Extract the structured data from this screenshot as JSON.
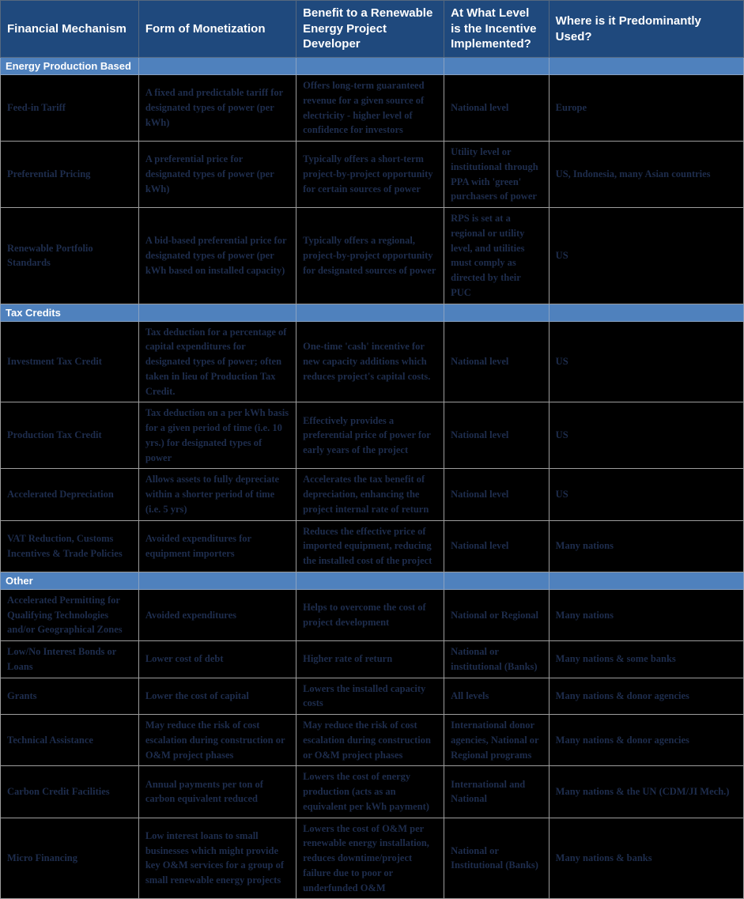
{
  "colors": {
    "header_bg": "#1F497D",
    "header_text": "#FFFFFF",
    "section_bg": "#4F81BD",
    "section_text": "#FFFFFF",
    "data_bg": "#000000",
    "data_text": "#1E2D4D"
  },
  "table": {
    "columns": [
      "Financial Mechanism",
      "Form of Monetization",
      "Benefit to a Renewable Energy Project Developer",
      "At What Level is the Incentive Implemented?",
      "Where is it Predominantly Used?"
    ],
    "sections": [
      {
        "label": "Energy Production Based",
        "rows": [
          {
            "cells": [
              "Feed-in Tariff",
              "A fixed and predictable tariff for designated types of power (per kWh)",
              "Offers long-term guaranteed revenue for a given source of electricity - higher level of confidence for investors",
              "National level",
              "Europe"
            ]
          },
          {
            "cells": [
              "Preferential Pricing",
              "A preferential price for designated types of power (per kWh)",
              "Typically offers a short-term project-by-project opportunity for certain sources of power",
              "Utility level or institutional through PPA with 'green' purchasers of power",
              "US, Indonesia, many Asian countries"
            ]
          },
          {
            "cells": [
              "Renewable Portfolio Standards",
              "A bid-based preferential price for designated types of power (per kWh based on installed capacity)",
              "Typically offers a regional, project-by-project opportunity for designated sources of power",
              "RPS is set at a regional or utility level, and utilities must comply as directed by their PUC",
              "US"
            ]
          }
        ]
      },
      {
        "label": "Tax Credits",
        "rows": [
          {
            "cells": [
              "Investment Tax Credit",
              "Tax deduction for a percentage of capital expenditures for designated types of power; often taken in lieu of Production Tax Credit.",
              "One-time 'cash' incentive for new capacity additions which reduces project's capital costs.",
              "National level",
              "US"
            ]
          },
          {
            "cells": [
              "Production Tax Credit",
              "Tax deduction on a per kWh basis for a given period of time (i.e. 10 yrs.) for designated types of power",
              "Effectively provides a preferential price of power for early years of the project",
              "National level",
              "US"
            ]
          },
          {
            "cells": [
              "Accelerated Depreciation",
              "Allows assets to fully depreciate within a shorter period of time (i.e. 5 yrs)",
              "Accelerates the tax benefit of depreciation, enhancing the project internal rate of return",
              "National level",
              "US"
            ]
          },
          {
            "cells": [
              "VAT Reduction, Customs Incentives & Trade Policies",
              "Avoided expenditures for equipment importers",
              "Reduces the effective price of imported equipment, reducing the installed cost of the project",
              "National level",
              "Many nations"
            ]
          }
        ]
      },
      {
        "label": "Other",
        "rows": [
          {
            "cells": [
              "Accelerated Permitting for Qualifying Technologies and/or Geographical Zones",
              "Avoided expenditures",
              "Helps to overcome the cost of project development",
              "National or Regional",
              "Many nations"
            ]
          },
          {
            "cells": [
              "Low/No Interest Bonds or Loans",
              "Lower cost of debt",
              "Higher rate of return",
              "National or institutional (Banks)",
              "Many nations & some banks"
            ]
          },
          {
            "cells": [
              "Grants",
              "Lower the cost of capital",
              "Lowers the installed capacity costs",
              "All levels",
              "Many nations & donor agencies"
            ]
          },
          {
            "cells": [
              "Technical Assistance",
              "May reduce the risk of cost escalation during construction or O&M project phases",
              "May reduce the risk of cost escalation during construction or O&M project phases",
              "International donor agencies, National or Regional programs",
              "Many nations & donor agencies"
            ]
          },
          {
            "cells": [
              "Carbon Credit Facilities",
              "Annual payments per ton of carbon equivalent reduced",
              "Lowers the cost of energy production (acts as an equivalent per kWh payment)",
              "International and National",
              "Many nations & the UN (CDM/JI Mech.)"
            ]
          },
          {
            "cells": [
              "Micro Financing",
              "Low interest loans to small businesses which might provide key O&M services for a group of small renewable energy projects",
              "Lowers the cost of O&M per renewable energy installation, reduces downtime/project failure due to poor or underfunded O&M",
              "National or Institutional (Banks)",
              "Many nations & banks"
            ]
          }
        ]
      }
    ]
  }
}
